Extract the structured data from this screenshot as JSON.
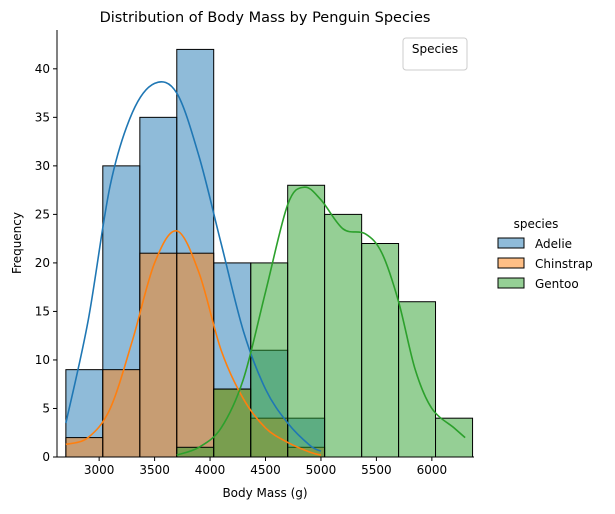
{
  "chart_data": {
    "type": "histogram",
    "title": "Distribution of Body Mass by Penguin Species",
    "xlabel": "Body Mass (g)",
    "ylabel": "Frequency",
    "xlim": [
      2620,
      6380
    ],
    "ylim": [
      0,
      44
    ],
    "xticks": [
      3000,
      3500,
      4000,
      4500,
      5000,
      5500,
      6000
    ],
    "yticks": [
      0,
      5,
      10,
      15,
      20,
      25,
      30,
      35,
      40
    ],
    "bin_edges": [
      2700,
      3033,
      3367,
      3700,
      4033,
      4367,
      4700,
      5033,
      5367,
      5700,
      6033,
      6367
    ],
    "series": [
      {
        "name": "Adelie",
        "color": "#1f77b4",
        "counts": [
          9,
          30,
          35,
          42,
          20,
          11,
          4,
          0,
          0,
          0,
          0
        ],
        "kde": [
          [
            2700,
            3.5
          ],
          [
            2900,
            14
          ],
          [
            3100,
            28
          ],
          [
            3300,
            35.5
          ],
          [
            3500,
            38.5
          ],
          [
            3700,
            37.5
          ],
          [
            3900,
            31
          ],
          [
            4100,
            22
          ],
          [
            4300,
            13
          ],
          [
            4500,
            7
          ],
          [
            4700,
            3.5
          ],
          [
            4900,
            1.2
          ],
          [
            5000,
            0.6
          ]
        ]
      },
      {
        "name": "Chinstrap",
        "color": "#ff7f0e",
        "counts": [
          2,
          9,
          21,
          21,
          7,
          4,
          1,
          0,
          0,
          0,
          0
        ],
        "kde": [
          [
            2700,
            1.3
          ],
          [
            2900,
            2.0
          ],
          [
            3100,
            5
          ],
          [
            3300,
            12
          ],
          [
            3500,
            20
          ],
          [
            3700,
            23.3
          ],
          [
            3900,
            19
          ],
          [
            4100,
            11
          ],
          [
            4300,
            6
          ],
          [
            4500,
            3
          ],
          [
            4700,
            1.5
          ],
          [
            4900,
            0.5
          ],
          [
            5000,
            0.2
          ]
        ]
      },
      {
        "name": "Gentoo",
        "color": "#2ca02c",
        "counts": [
          0,
          0,
          0,
          1,
          7,
          20,
          28,
          25,
          22,
          16,
          4
        ],
        "kde": [
          [
            3700,
            0.2
          ],
          [
            3900,
            1
          ],
          [
            4100,
            3
          ],
          [
            4300,
            8
          ],
          [
            4500,
            17
          ],
          [
            4700,
            26
          ],
          [
            4850,
            27.8
          ],
          [
            5000,
            26.5
          ],
          [
            5200,
            23.5
          ],
          [
            5400,
            23
          ],
          [
            5550,
            21
          ],
          [
            5700,
            16
          ],
          [
            5850,
            9
          ],
          [
            6000,
            5
          ],
          [
            6200,
            3
          ],
          [
            6300,
            2
          ]
        ]
      }
    ],
    "empty_legend": {
      "title": "Species",
      "placement": "upper-right"
    },
    "legend": {
      "title": "species",
      "placement": "right",
      "entries": [
        "Adelie",
        "Chinstrap",
        "Gentoo"
      ]
    }
  }
}
